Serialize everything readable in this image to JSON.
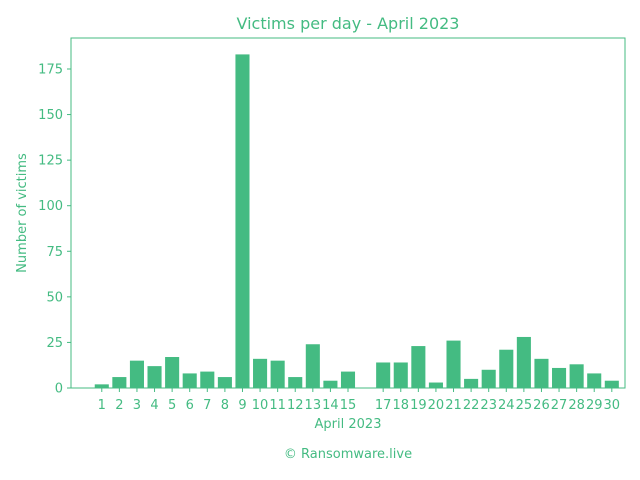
{
  "colors": {
    "accent": "#44bb82",
    "text": "#44bb82",
    "background": "#ffffff"
  },
  "credit": "© Ransomware.live",
  "chart_data": {
    "type": "bar",
    "title": "Victims per day - April 2023",
    "xlabel": "April 2023",
    "ylabel": "Number of victims",
    "ylim": [
      0,
      192
    ],
    "yticks": [
      0,
      25,
      50,
      75,
      100,
      125,
      150,
      175
    ],
    "grid": false,
    "x": [
      1,
      2,
      3,
      4,
      5,
      6,
      7,
      8,
      9,
      10,
      11,
      12,
      13,
      14,
      15,
      17,
      18,
      19,
      20,
      21,
      22,
      23,
      24,
      25,
      26,
      27,
      28,
      29,
      30
    ],
    "categories": [
      "1",
      "2",
      "3",
      "4",
      "5",
      "6",
      "7",
      "8",
      "9",
      "10",
      "11",
      "12",
      "13",
      "14",
      "15",
      "17",
      "18",
      "19",
      "20",
      "21",
      "22",
      "23",
      "24",
      "25",
      "26",
      "27",
      "28",
      "29",
      "30"
    ],
    "values": [
      2,
      6,
      15,
      12,
      17,
      8,
      9,
      6,
      183,
      16,
      15,
      6,
      24,
      4,
      9,
      14,
      14,
      23,
      3,
      26,
      5,
      10,
      21,
      28,
      16,
      11,
      13,
      8,
      4
    ]
  }
}
